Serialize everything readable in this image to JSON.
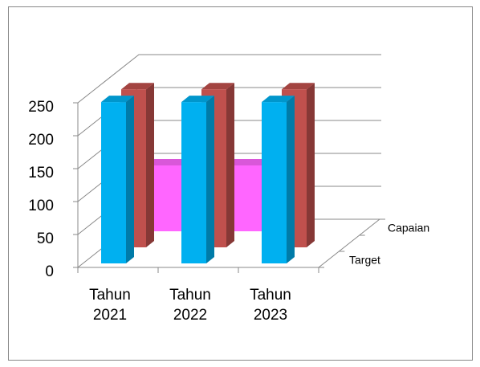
{
  "chart_data": {
    "type": "bar3d",
    "categories": [
      "Tahun 2021",
      "Tahun 2022",
      "Tahun 2023"
    ],
    "series": [
      {
        "name": "Target",
        "color": "#00b0f0",
        "values": [
          245,
          245,
          245
        ]
      },
      {
        "name": "Capaian",
        "color": "#c0504d",
        "values": [
          240,
          240,
          240
        ]
      },
      {
        "color": "#ff66ff",
        "values": [
          100,
          100,
          100
        ],
        "shape": "area"
      }
    ],
    "ylim": [
      0,
      250
    ],
    "yticks": [
      0,
      50,
      100,
      150,
      200,
      250
    ],
    "grid": true
  }
}
